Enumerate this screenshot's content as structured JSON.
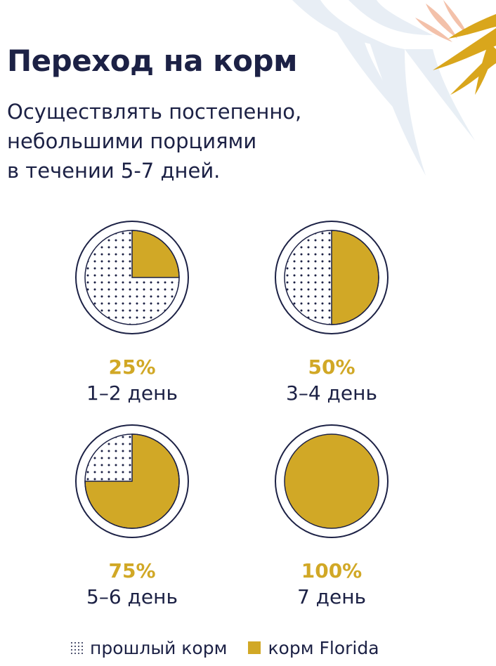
{
  "header": {
    "title": "Переход на корм",
    "subtitle_lines": [
      "Осуществлять постепенно,",
      "небольшими порциями",
      "в течении 5-7 дней."
    ]
  },
  "colors": {
    "new_food": "#d1a826",
    "outline": "#1c2145",
    "dots": "#1c2145",
    "leaf_gold": "#d9a61c",
    "leaf_peach": "#f2b79c",
    "leaf_blue": "#dbe5ee"
  },
  "chart_data": {
    "type": "pie",
    "series_names": {
      "old": "прошлый корм",
      "new": "корм Florida"
    },
    "slices": [
      {
        "label": "1–2 день",
        "pct_label": "25%",
        "new_food_share": 25,
        "old_food_share": 75
      },
      {
        "label": "3–4 день",
        "pct_label": "50%",
        "new_food_share": 50,
        "old_food_share": 50
      },
      {
        "label": "5–6 день",
        "pct_label": "75%",
        "new_food_share": 75,
        "old_food_share": 25
      },
      {
        "label": "7 день",
        "pct_label": "100%",
        "new_food_share": 100,
        "old_food_share": 0
      }
    ]
  },
  "legend": {
    "items": [
      {
        "label": "прошлый корм",
        "icon": "dotted-square-icon"
      },
      {
        "label": "корм Florida",
        "icon": "gold-square-icon"
      }
    ]
  }
}
